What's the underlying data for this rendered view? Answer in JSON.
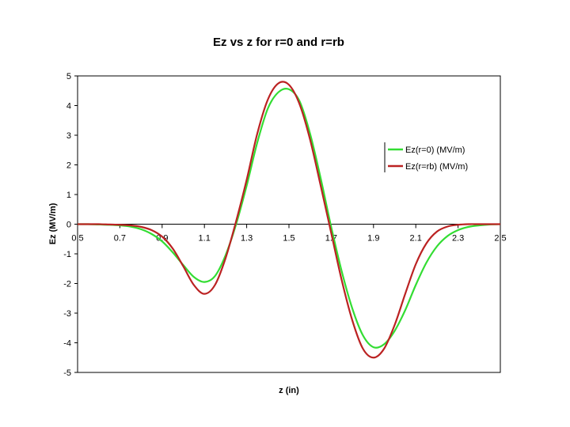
{
  "chart_data": {
    "type": "line",
    "title": "Ez vs z for r=0 and r=rb",
    "xlabel": "z (in)",
    "ylabel": "Ez (MV/m)",
    "xlim": [
      0.5,
      2.5
    ],
    "ylim": [
      -5,
      5
    ],
    "x_ticks": [
      "0.5",
      "0.7",
      "0.9",
      "1.1",
      "1.3",
      "1.5",
      "1.7",
      "1.9",
      "2.1",
      "2.3",
      "2.5"
    ],
    "y_ticks": [
      "5",
      "4",
      "3",
      "2",
      "1",
      "0",
      "-1",
      "-2",
      "-3",
      "-4",
      "-5"
    ],
    "grid": false,
    "legend_position": "right",
    "series": [
      {
        "name": "Ez(r=0) (MV/m)",
        "color": "#33dd33",
        "x": [
          0.5,
          0.55,
          0.6,
          0.65,
          0.7,
          0.75,
          0.8,
          0.85,
          0.9,
          0.95,
          1.0,
          1.05,
          1.1,
          1.15,
          1.2,
          1.25,
          1.3,
          1.35,
          1.4,
          1.45,
          1.5,
          1.55,
          1.6,
          1.65,
          1.7,
          1.75,
          1.8,
          1.85,
          1.9,
          1.95,
          2.0,
          2.05,
          2.1,
          2.15,
          2.2,
          2.25,
          2.3,
          2.35,
          2.4,
          2.45,
          2.5
        ],
        "values": [
          0.0,
          0.0,
          -0.01,
          -0.02,
          -0.04,
          -0.08,
          -0.17,
          -0.33,
          -0.58,
          -0.95,
          -1.38,
          -1.78,
          -1.95,
          -1.75,
          -1.05,
          0.0,
          1.3,
          2.75,
          3.9,
          4.45,
          4.55,
          4.15,
          3.05,
          1.55,
          -0.1,
          -1.6,
          -2.85,
          -3.75,
          -4.15,
          -4.05,
          -3.6,
          -2.9,
          -2.05,
          -1.3,
          -0.75,
          -0.4,
          -0.2,
          -0.09,
          -0.04,
          -0.01,
          0.0
        ]
      },
      {
        "name": "Ez(r=rb) (MV/m)",
        "color": "#bb2222",
        "x": [
          0.5,
          0.55,
          0.6,
          0.65,
          0.7,
          0.75,
          0.8,
          0.85,
          0.9,
          0.95,
          1.0,
          1.05,
          1.1,
          1.15,
          1.2,
          1.25,
          1.3,
          1.35,
          1.4,
          1.45,
          1.5,
          1.55,
          1.6,
          1.65,
          1.7,
          1.75,
          1.8,
          1.85,
          1.9,
          1.95,
          2.0,
          2.05,
          2.1,
          2.15,
          2.2,
          2.25,
          2.3,
          2.35,
          2.4,
          2.45,
          2.5
        ],
        "values": [
          0.0,
          0.0,
          0.0,
          -0.01,
          -0.02,
          -0.04,
          -0.09,
          -0.2,
          -0.42,
          -0.82,
          -1.42,
          -2.05,
          -2.35,
          -2.05,
          -1.15,
          0.1,
          1.5,
          3.05,
          4.2,
          4.75,
          4.7,
          4.05,
          2.85,
          1.3,
          -0.3,
          -1.9,
          -3.25,
          -4.2,
          -4.5,
          -4.2,
          -3.4,
          -2.35,
          -1.35,
          -0.65,
          -0.25,
          -0.08,
          -0.02,
          0.0,
          0.0,
          0.0,
          0.0
        ]
      }
    ]
  }
}
